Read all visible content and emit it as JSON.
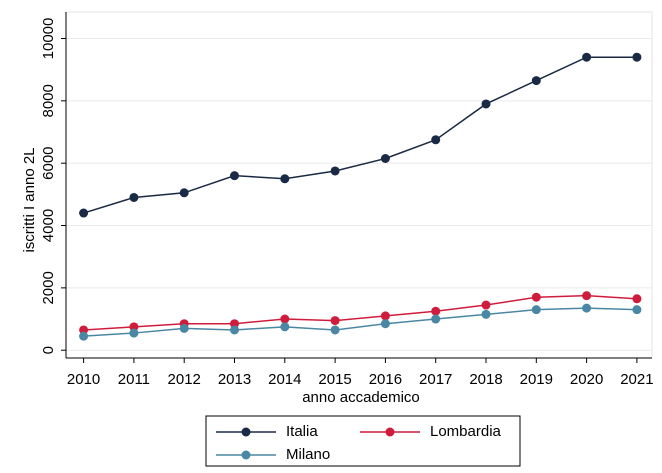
{
  "chart_data": {
    "type": "line",
    "x": [
      2010,
      2011,
      2012,
      2013,
      2014,
      2015,
      2016,
      2017,
      2018,
      2019,
      2020,
      2021
    ],
    "series": [
      {
        "name": "Italia",
        "color": "#1a2a44",
        "values": [
          4400,
          4900,
          5050,
          5600,
          5500,
          5750,
          6150,
          6750,
          7900,
          8650,
          9400,
          9400
        ]
      },
      {
        "name": "Lombardia",
        "color": "#d01c3c",
        "values": [
          650,
          750,
          850,
          850,
          1000,
          950,
          1100,
          1250,
          1450,
          1700,
          1750,
          1650
        ]
      },
      {
        "name": "Milano",
        "color": "#4a87a4",
        "values": [
          450,
          550,
          700,
          650,
          750,
          650,
          850,
          1000,
          1150,
          1300,
          1350,
          1300
        ]
      }
    ],
    "xlabel": "anno accademico",
    "ylabel": "iscritti I anno 2L",
    "xlim": [
      2009.65,
      2021.3
    ],
    "xticks": [
      2010,
      2011,
      2012,
      2013,
      2014,
      2015,
      2016,
      2017,
      2018,
      2019,
      2020,
      2021
    ],
    "ylim": [
      -250,
      10850
    ],
    "yticks": [
      0,
      2000,
      4000,
      6000,
      8000,
      10000
    ],
    "grid": true,
    "legend": "bottom"
  }
}
